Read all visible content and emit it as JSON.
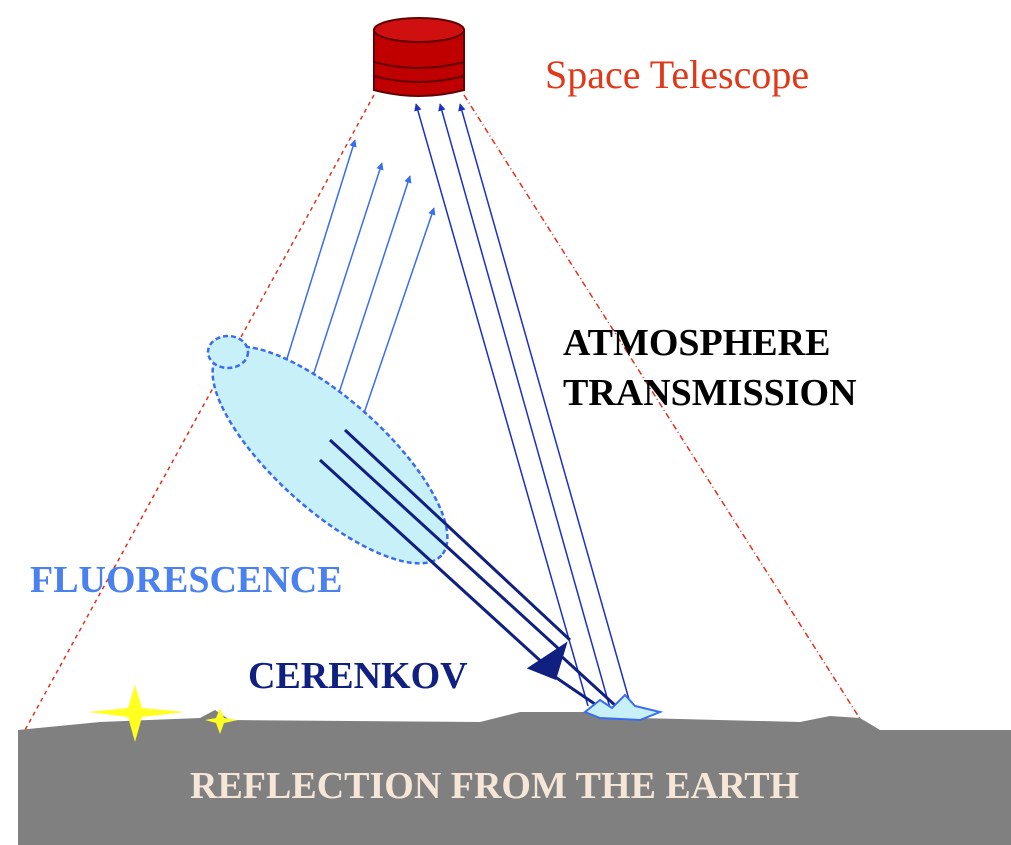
{
  "labels": {
    "telescope": "Space Telescope",
    "atmosphere": [
      "ATMOSPHERE",
      "TRANSMISSION"
    ],
    "fluorescence": "FLUORESCENCE",
    "cerenkov": "CERENKOV",
    "reflection": "REFLECTION FROM THE EARTH"
  }
}
